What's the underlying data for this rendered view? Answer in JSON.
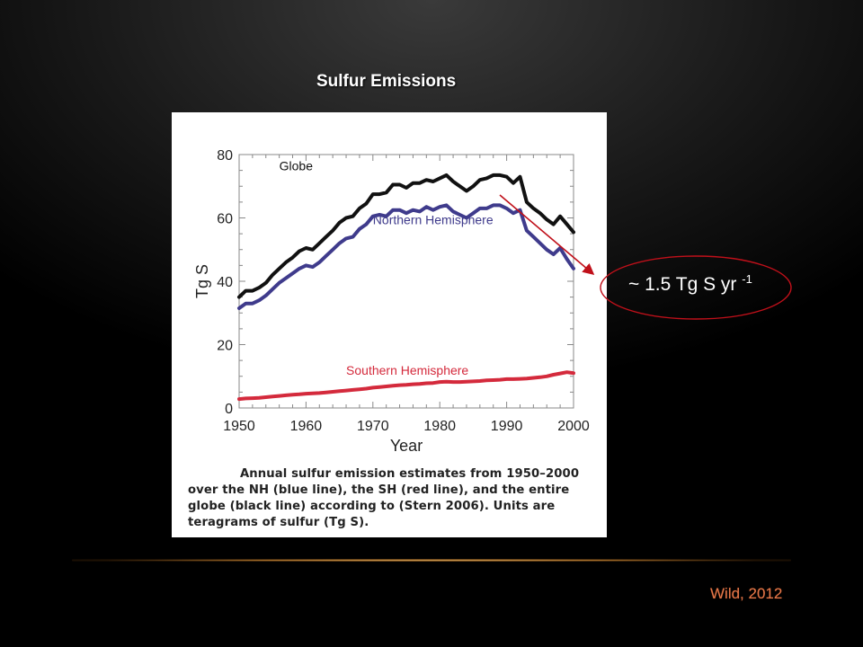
{
  "slide": {
    "title": "Sulfur Emissions",
    "credit": "Wild, 2012"
  },
  "callout": {
    "text": "~ 1.5 Tg S yr ",
    "superscript": "-1",
    "ellipse_color": "#c0101a",
    "arrow_color": "#c0101a"
  },
  "figure": {
    "caption": "Annual sulfur emission estimates from 1950–2000 over the NH (blue line), the SH (red line), and the entire globe (black line) according to (Stern 2006). Units are teragrams of sulfur (Tg S)."
  },
  "chart_data": {
    "type": "line",
    "xlabel": "Year",
    "ylabel": "Tg S",
    "xlim": [
      1950,
      2000
    ],
    "ylim": [
      0,
      80
    ],
    "xticks": [
      1950,
      1960,
      1970,
      1980,
      1990,
      2000
    ],
    "yticks": [
      0,
      20,
      40,
      60,
      80
    ],
    "x": [
      1950,
      1951,
      1952,
      1953,
      1954,
      1955,
      1956,
      1957,
      1958,
      1959,
      1960,
      1961,
      1962,
      1963,
      1964,
      1965,
      1966,
      1967,
      1968,
      1969,
      1970,
      1971,
      1972,
      1973,
      1974,
      1975,
      1976,
      1977,
      1978,
      1979,
      1980,
      1981,
      1982,
      1983,
      1984,
      1985,
      1986,
      1987,
      1988,
      1989,
      1990,
      1991,
      1992,
      1993,
      1994,
      1995,
      1996,
      1997,
      1998,
      1999,
      2000
    ],
    "series": [
      {
        "name": "Globe",
        "color": "#111111",
        "values": [
          35,
          37,
          37,
          38,
          39.5,
          42,
          44,
          46,
          47.5,
          49.5,
          50.5,
          50,
          52,
          54,
          56,
          58.5,
          60,
          60.5,
          63,
          64.5,
          67.5,
          67.5,
          68,
          70.5,
          70.5,
          69.5,
          71,
          71,
          72,
          71.5,
          72.5,
          73.5,
          71.5,
          70,
          68.5,
          70,
          72,
          72.5,
          73.5,
          73.5,
          73,
          71,
          73,
          65,
          63,
          61.5,
          59.5,
          58,
          60.5,
          58,
          55.5
        ]
      },
      {
        "name": "Northern Hemisphere",
        "color": "#3f3b8c",
        "values": [
          31.5,
          33,
          33,
          34,
          35.5,
          37.5,
          39.5,
          41,
          42.5,
          44,
          45,
          44.5,
          46,
          48,
          50,
          52,
          53.5,
          54,
          56.5,
          58,
          60.5,
          61,
          60.5,
          62.5,
          62.5,
          61.5,
          62.5,
          62,
          63.5,
          62.5,
          63.5,
          64,
          62,
          61,
          60,
          61.5,
          63,
          63,
          64,
          64,
          63,
          61.5,
          62.5,
          56,
          54,
          52,
          50,
          48.5,
          50.5,
          47,
          44
        ]
      },
      {
        "name": "Southern Hemisphere",
        "color": "#d42a3c",
        "values": [
          2.8,
          3,
          3.1,
          3.2,
          3.4,
          3.6,
          3.8,
          4,
          4.2,
          4.3,
          4.5,
          4.6,
          4.7,
          4.9,
          5.1,
          5.3,
          5.5,
          5.7,
          5.9,
          6.1,
          6.4,
          6.6,
          6.8,
          7,
          7.2,
          7.3,
          7.5,
          7.6,
          7.8,
          7.9,
          8.2,
          8.3,
          8.2,
          8.2,
          8.3,
          8.4,
          8.5,
          8.7,
          8.8,
          8.9,
          9.1,
          9.1,
          9.2,
          9.3,
          9.5,
          9.7,
          10.0,
          10.5,
          10.9,
          11.3,
          11.0
        ]
      }
    ]
  }
}
